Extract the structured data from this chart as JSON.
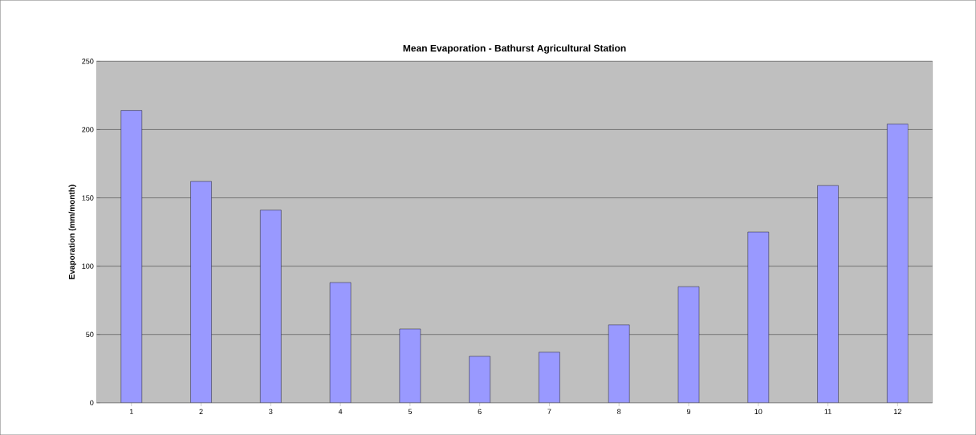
{
  "chart_data": {
    "type": "bar",
    "title": "Mean  Evaporation - Bathurst Agricultural Station",
    "ylabel": "Evaporation (mm/month)",
    "categories": [
      "1",
      "2",
      "3",
      "4",
      "5",
      "6",
      "7",
      "8",
      "9",
      "10",
      "11",
      "12"
    ],
    "values": [
      214,
      162,
      141,
      88,
      54,
      34,
      37,
      57,
      85,
      125,
      159,
      204
    ],
    "color": "#9999ff",
    "ylim": [
      0,
      250
    ],
    "yticks": [
      0,
      50,
      100,
      150,
      200,
      250
    ],
    "grid": "y"
  }
}
